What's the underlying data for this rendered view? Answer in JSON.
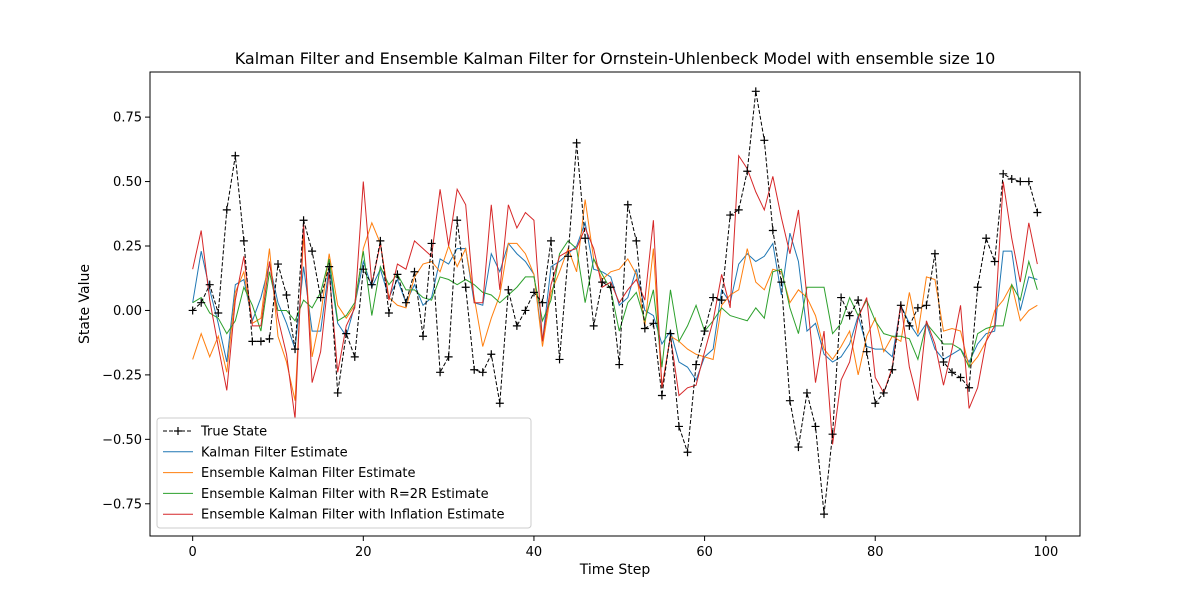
{
  "chart_data": {
    "type": "line",
    "title": "Kalman Filter and Ensemble Kalman Filter for Ornstein-Uhlenbeck Model with ensemble size 10",
    "xlabel": "Time Step",
    "ylabel": "State Value",
    "xlim": [
      -5,
      104
    ],
    "ylim": [
      -0.875,
      0.925
    ],
    "xticks": [
      0,
      20,
      40,
      60,
      80,
      100
    ],
    "yticks": [
      -0.75,
      -0.5,
      -0.25,
      0.0,
      0.25,
      0.5,
      0.75
    ],
    "ytick_labels": [
      "−0.75",
      "−0.50",
      "−0.25",
      "0.00",
      "0.25",
      "0.50",
      "0.75"
    ],
    "grid": false,
    "legend_position": "lower-left",
    "x": [
      0,
      1,
      2,
      3,
      4,
      5,
      6,
      7,
      8,
      9,
      10,
      11,
      12,
      13,
      14,
      15,
      16,
      17,
      18,
      19,
      20,
      21,
      22,
      23,
      24,
      25,
      26,
      27,
      28,
      29,
      30,
      31,
      32,
      33,
      34,
      35,
      36,
      37,
      38,
      39,
      40,
      41,
      42,
      43,
      44,
      45,
      46,
      47,
      48,
      49,
      50,
      51,
      52,
      53,
      54,
      55,
      56,
      57,
      58,
      59,
      60,
      61,
      62,
      63,
      64,
      65,
      66,
      67,
      68,
      69,
      70,
      71,
      72,
      73,
      74,
      75,
      76,
      77,
      78,
      79,
      80,
      81,
      82,
      83,
      84,
      85,
      86,
      87,
      88,
      89,
      90,
      91,
      92,
      93,
      94,
      95,
      96,
      97,
      98,
      99
    ],
    "series": [
      {
        "name": "True State",
        "color": "#000000",
        "style": "dashed-plus",
        "values": [
          0.0,
          0.03,
          0.1,
          -0.01,
          0.39,
          0.6,
          0.27,
          -0.12,
          -0.12,
          -0.11,
          0.18,
          0.06,
          -0.15,
          0.35,
          0.23,
          0.05,
          0.17,
          -0.32,
          -0.09,
          -0.18,
          0.16,
          0.1,
          0.27,
          -0.01,
          0.14,
          0.03,
          0.15,
          -0.1,
          0.26,
          -0.24,
          -0.18,
          0.35,
          0.09,
          -0.23,
          -0.24,
          -0.17,
          -0.36,
          0.08,
          -0.06,
          0.0,
          0.07,
          0.03,
          0.27,
          -0.19,
          0.21,
          0.65,
          0.28,
          -0.06,
          0.11,
          0.09,
          -0.21,
          0.41,
          0.27,
          -0.07,
          -0.05,
          -0.33,
          -0.09,
          -0.45,
          -0.55,
          -0.21,
          -0.08,
          0.05,
          0.04,
          0.37,
          0.39,
          0.54,
          0.85,
          0.66,
          0.31,
          0.11,
          -0.35,
          -0.53,
          -0.32,
          -0.45,
          -0.79,
          -0.48,
          0.05,
          -0.02,
          0.04,
          -0.16,
          -0.36,
          -0.32,
          -0.23,
          0.02,
          -0.06,
          0.01,
          0.02,
          0.22,
          -0.2,
          -0.24,
          -0.26,
          -0.3,
          0.09,
          0.28,
          0.19,
          0.53,
          0.51,
          0.5,
          0.5,
          0.38
        ]
      },
      {
        "name": "Kalman Filter Estimate",
        "color": "#1f77b4",
        "style": "solid",
        "values": [
          0.03,
          0.23,
          0.08,
          -0.05,
          -0.2,
          0.1,
          0.12,
          -0.04,
          0.05,
          0.18,
          0.03,
          -0.05,
          -0.15,
          0.17,
          -0.08,
          -0.08,
          0.17,
          -0.05,
          -0.1,
          0.02,
          0.19,
          0.09,
          0.16,
          0.05,
          0.12,
          0.03,
          0.1,
          0.02,
          0.05,
          0.2,
          0.18,
          0.24,
          0.24,
          0.03,
          0.02,
          0.22,
          0.15,
          0.26,
          0.22,
          0.19,
          0.14,
          -0.12,
          0.17,
          0.19,
          0.22,
          0.25,
          0.34,
          0.16,
          0.15,
          0.13,
          0.02,
          0.05,
          0.16,
          0.0,
          -0.02,
          -0.13,
          -0.08,
          -0.2,
          -0.22,
          -0.27,
          -0.18,
          -0.15,
          0.08,
          0.03,
          0.18,
          0.22,
          0.19,
          0.21,
          0.26,
          0.06,
          0.3,
          0.19,
          -0.08,
          -0.05,
          -0.17,
          -0.2,
          -0.18,
          -0.13,
          -0.02,
          -0.14,
          -0.15,
          -0.15,
          -0.18,
          0.02,
          -0.05,
          -0.1,
          -0.05,
          -0.15,
          -0.19,
          -0.17,
          -0.15,
          -0.2,
          -0.13,
          -0.09,
          -0.08,
          0.23,
          0.23,
          0.0,
          0.13,
          0.12
        ]
      },
      {
        "name": "Ensemble Kalman Filter Estimate",
        "color": "#ff7f0e",
        "style": "solid",
        "values": [
          -0.19,
          -0.09,
          -0.18,
          -0.1,
          -0.24,
          0.07,
          0.15,
          -0.05,
          -0.03,
          0.24,
          -0.1,
          -0.2,
          -0.35,
          0.29,
          -0.18,
          -0.02,
          0.22,
          0.02,
          -0.03,
          0.02,
          0.24,
          0.34,
          0.26,
          0.05,
          0.02,
          0.01,
          0.13,
          0.18,
          0.19,
          0.15,
          0.25,
          0.17,
          0.24,
          0.05,
          -0.14,
          -0.03,
          0.06,
          0.26,
          0.26,
          0.22,
          0.14,
          -0.14,
          0.07,
          0.15,
          0.24,
          0.15,
          0.43,
          0.2,
          0.12,
          0.15,
          0.16,
          0.2,
          0.14,
          -0.06,
          0.24,
          -0.3,
          -0.1,
          -0.12,
          -0.15,
          -0.17,
          -0.18,
          -0.19,
          0.02,
          0.06,
          0.08,
          0.24,
          0.11,
          0.08,
          0.16,
          0.15,
          0.03,
          0.08,
          0.05,
          -0.02,
          -0.15,
          -0.19,
          -0.14,
          -0.08,
          -0.25,
          -0.1,
          -0.03,
          -0.16,
          -0.1,
          -0.12,
          0.07,
          -0.09,
          0.13,
          0.12,
          -0.08,
          -0.07,
          -0.08,
          -0.22,
          -0.18,
          -0.12,
          0.0,
          0.04,
          0.1,
          -0.04,
          0.0,
          0.02
        ]
      },
      {
        "name": "Ensemble Kalman Filter with R=2R Estimate",
        "color": "#2ca02c",
        "style": "solid",
        "values": [
          0.03,
          0.05,
          -0.01,
          -0.03,
          -0.09,
          -0.04,
          0.09,
          0.02,
          -0.08,
          0.15,
          0.0,
          0.0,
          -0.04,
          0.04,
          0.01,
          0.07,
          0.2,
          -0.04,
          -0.02,
          0.03,
          0.23,
          -0.02,
          0.17,
          0.1,
          0.14,
          0.08,
          0.08,
          0.05,
          0.04,
          0.13,
          0.12,
          0.1,
          0.12,
          0.1,
          0.07,
          0.06,
          0.03,
          0.06,
          0.09,
          0.13,
          0.13,
          -0.04,
          0.04,
          0.22,
          0.27,
          0.24,
          0.03,
          0.2,
          0.14,
          0.08,
          -0.08,
          0.03,
          0.07,
          -0.04,
          0.08,
          -0.22,
          0.08,
          -0.12,
          -0.06,
          0.02,
          -0.08,
          -0.04,
          0.01,
          -0.02,
          -0.03,
          -0.04,
          0.01,
          -0.03,
          0.15,
          0.16,
          0.01,
          -0.09,
          0.09,
          0.09,
          0.09,
          -0.09,
          -0.05,
          0.05,
          -0.02,
          0.04,
          -0.04,
          -0.09,
          -0.1,
          -0.1,
          -0.11,
          -0.19,
          -0.05,
          -0.09,
          -0.13,
          -0.13,
          -0.15,
          -0.22,
          -0.09,
          -0.07,
          -0.06,
          -0.06,
          0.1,
          0.04,
          0.19,
          0.08
        ]
      },
      {
        "name": "Ensemble Kalman Filter with Inflation Estimate",
        "color": "#d62728",
        "style": "solid",
        "values": [
          0.16,
          0.31,
          0.04,
          -0.14,
          -0.31,
          0.04,
          0.21,
          -0.06,
          -0.06,
          0.19,
          -0.03,
          -0.17,
          -0.42,
          0.34,
          -0.28,
          -0.16,
          0.15,
          -0.24,
          -0.06,
          0.01,
          0.5,
          0.1,
          0.26,
          0.04,
          0.18,
          0.16,
          0.27,
          0.24,
          0.21,
          0.47,
          0.25,
          0.47,
          0.41,
          0.03,
          0.03,
          0.41,
          0.08,
          0.41,
          0.32,
          0.38,
          0.35,
          -0.12,
          0.1,
          0.21,
          0.23,
          0.24,
          0.32,
          0.24,
          0.09,
          0.11,
          0.03,
          0.08,
          0.12,
          0.04,
          0.35,
          -0.3,
          -0.1,
          -0.33,
          -0.3,
          -0.29,
          -0.16,
          -0.04,
          0.14,
          0.01,
          0.6,
          0.55,
          0.46,
          0.39,
          0.52,
          0.36,
          0.22,
          0.39,
          0.05,
          -0.28,
          -0.08,
          -0.52,
          -0.27,
          -0.2,
          -0.03,
          0.05,
          -0.26,
          -0.32,
          -0.22,
          0.03,
          -0.22,
          -0.35,
          -0.04,
          -0.13,
          -0.29,
          -0.15,
          0.02,
          -0.38,
          -0.3,
          -0.12,
          -0.06,
          0.5,
          0.28,
          0.11,
          0.34,
          0.18
        ]
      }
    ]
  }
}
